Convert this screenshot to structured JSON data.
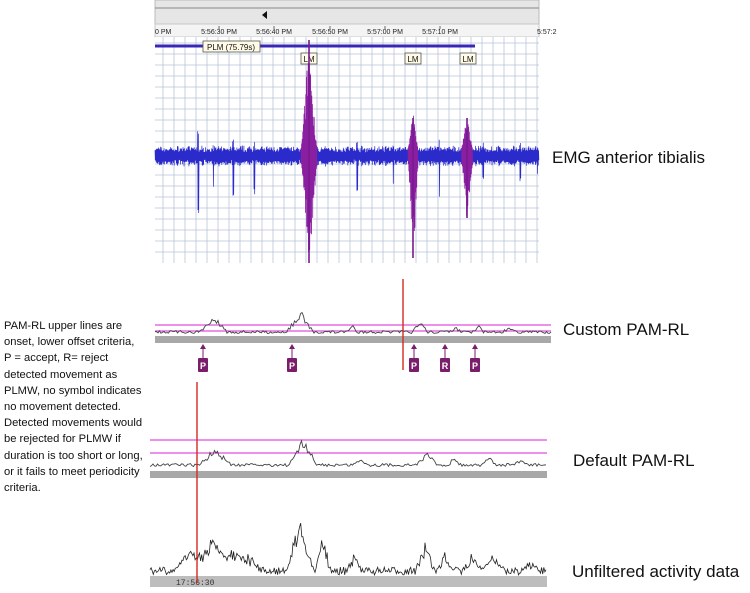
{
  "chart_data": [
    {
      "type": "line",
      "title": "EMG anterior tibialis",
      "x_tick_labels": [
        "5:56:30 PM",
        "5:56:40 PM",
        "5:56:50 PM",
        "5:57:00 PM",
        "5:57:10 PM"
      ],
      "x_tick_partial_left": "0 PM",
      "x_tick_partial_right": "5:57:2",
      "plm_label": "PLM (75.79s)",
      "lm_labels": [
        "LM",
        "LM",
        "LM"
      ],
      "colors": {
        "signal": "#2b2bcc",
        "event": "#8a1fa0",
        "grid": "#b9c3d6",
        "plm_bar": "#3b27b5"
      },
      "grid": true
    },
    {
      "type": "line",
      "title": "Custom PAM-RL",
      "markers": [
        "P",
        "P",
        "P",
        "R",
        "P"
      ],
      "colors": {
        "signal": "#444444",
        "threshold": "#e14de1",
        "marker": "#7a1e6b"
      }
    },
    {
      "type": "line",
      "title": "Default PAM-RL",
      "colors": {
        "signal": "#444444",
        "threshold": "#e14de1"
      }
    },
    {
      "type": "line",
      "title": "Unfiltered activity data",
      "time_label": "17:56:30",
      "colors": {
        "signal": "#222222"
      }
    }
  ],
  "annotation": "PAM-RL upper lines are onset, lower offset criteria,  P = accept, R= reject detected movement as PLMW, no symbol  indicates no movement detected. Detected movements would be rejected for PLMW if duration is too short or long, or it fails to meet periodicity criteria.",
  "colors": {
    "cursor_line": "#d42a1e"
  }
}
